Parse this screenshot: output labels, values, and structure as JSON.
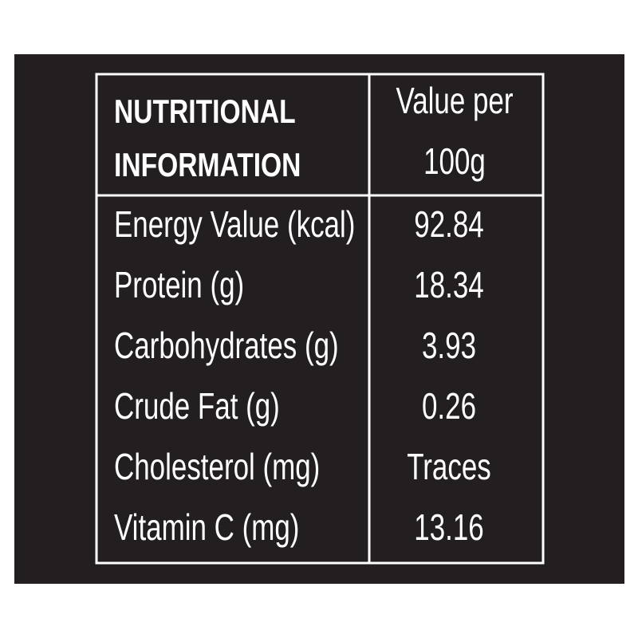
{
  "table": {
    "header": [
      [
        "NUTRITIONAL",
        "INFORMATION"
      ],
      [
        "Value per",
        "100g"
      ]
    ],
    "rows": [
      [
        "Energy Value (kcal)",
        "92.84"
      ],
      [
        "Protein (g)",
        "18.34"
      ],
      [
        "Carbohydrates (g)",
        "3.93"
      ],
      [
        "Crude Fat (g)",
        "0.26"
      ],
      [
        "Cholesterol (mg)",
        "Traces"
      ],
      [
        "Vitamin C (mg)",
        "13.16"
      ]
    ]
  }
}
